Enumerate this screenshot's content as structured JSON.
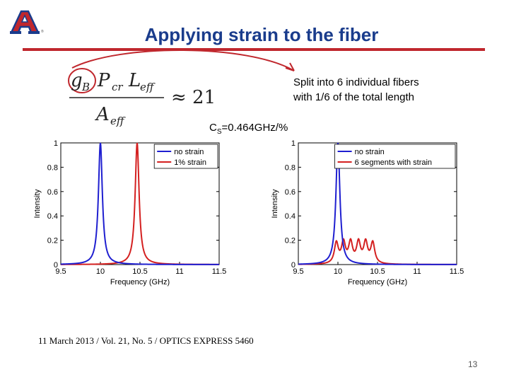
{
  "slide": {
    "title": "Applying strain to the fiber",
    "note_line1": "Split into 6 individual fibers",
    "note_line2": "with 1/6 of the total length",
    "cs_label_main": "C",
    "cs_label_sub": "S",
    "cs_label_value": "=0.464GHz/%",
    "formula_rhs": "≈ 21",
    "citation": "11 March 2013 / Vol. 21,  No. 5 / OPTICS EXPRESS  5460",
    "page_number": "13",
    "logo_letter": "A",
    "accent_color": "#c0272d",
    "title_color": "#1a3c8c"
  },
  "chart_data": [
    {
      "type": "line",
      "xlabel": "Frequency (GHz)",
      "ylabel": "Intensity",
      "xlim": [
        9.5,
        11.5
      ],
      "ylim": [
        0,
        1
      ],
      "xticks": [
        "9.5",
        "10",
        "10.5",
        "11",
        "11.5"
      ],
      "yticks": [
        "0",
        "0.2",
        "0.4",
        "0.6",
        "0.8",
        "1"
      ],
      "legend_position": "top-right",
      "series": [
        {
          "name": "no strain",
          "color": "#1f1fd0",
          "peaks": [
            {
              "center": 10.0,
              "amp": 1.0,
              "width": 0.03
            }
          ]
        },
        {
          "name": "1% strain",
          "color": "#d42020",
          "peaks": [
            {
              "center": 10.464,
              "amp": 1.0,
              "width": 0.03
            }
          ]
        }
      ]
    },
    {
      "type": "line",
      "xlabel": "Frequency (GHz)",
      "ylabel": "Intensity",
      "xlim": [
        9.5,
        11.5
      ],
      "ylim": [
        0,
        1
      ],
      "xticks": [
        "9.5",
        "10",
        "10.5",
        "11",
        "11.5"
      ],
      "yticks": [
        "0",
        "0.2",
        "0.4",
        "0.6",
        "0.8",
        "1"
      ],
      "legend_position": "top-right",
      "series": [
        {
          "name": "no strain",
          "color": "#1f1fd0",
          "peaks": [
            {
              "center": 10.0,
              "amp": 1.0,
              "width": 0.03
            }
          ]
        },
        {
          "name": "6 segments with strain",
          "color": "#d42020",
          "peaks": [
            {
              "center": 9.98,
              "amp": 0.17,
              "width": 0.03
            },
            {
              "center": 10.07,
              "amp": 0.17,
              "width": 0.03
            },
            {
              "center": 10.16,
              "amp": 0.17,
              "width": 0.03
            },
            {
              "center": 10.26,
              "amp": 0.17,
              "width": 0.03
            },
            {
              "center": 10.35,
              "amp": 0.17,
              "width": 0.03
            },
            {
              "center": 10.44,
              "amp": 0.17,
              "width": 0.03
            }
          ]
        }
      ]
    }
  ]
}
